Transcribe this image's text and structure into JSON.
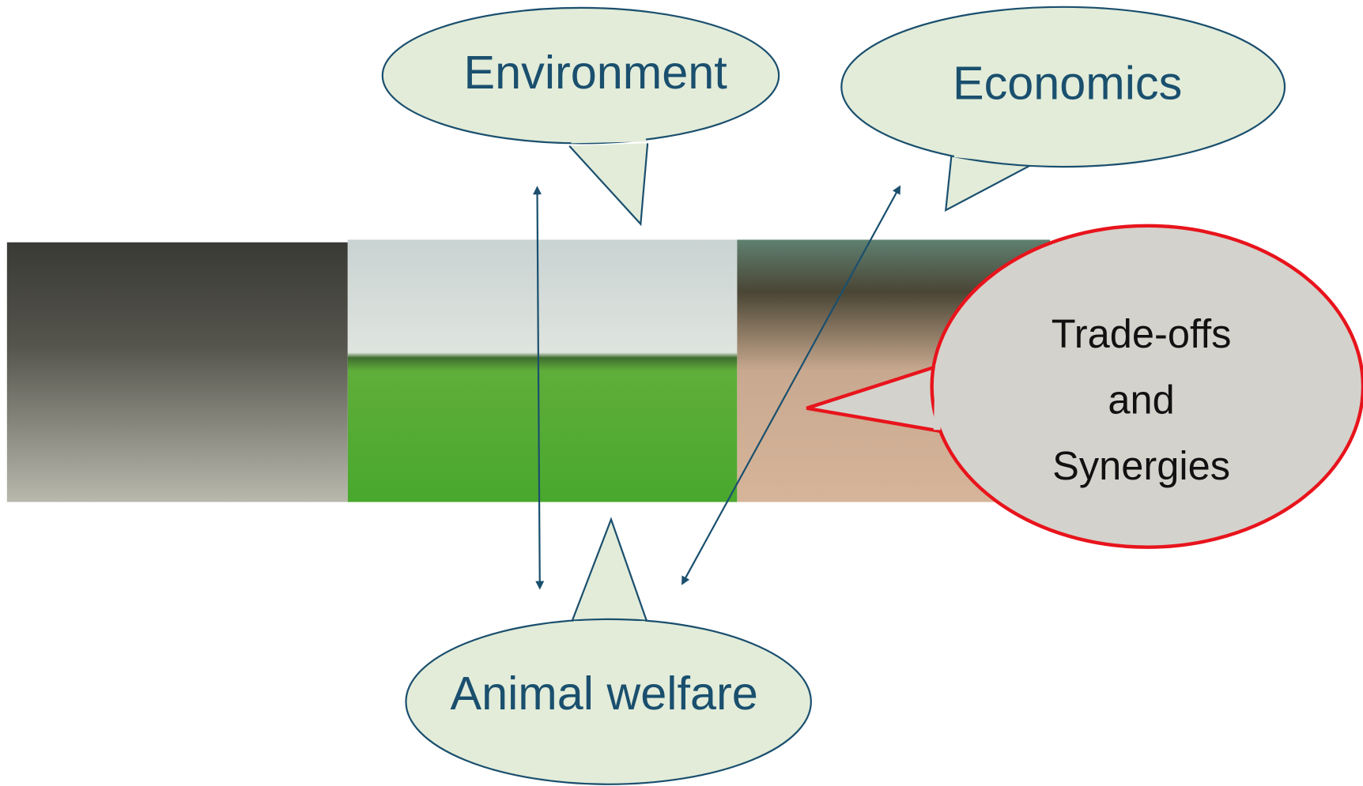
{
  "callouts": {
    "environment": "Environment",
    "economics": "Economics",
    "animal_welfare": "Animal welfare",
    "trade_offs": [
      "Trade-offs",
      "and",
      "Synergies"
    ]
  }
}
